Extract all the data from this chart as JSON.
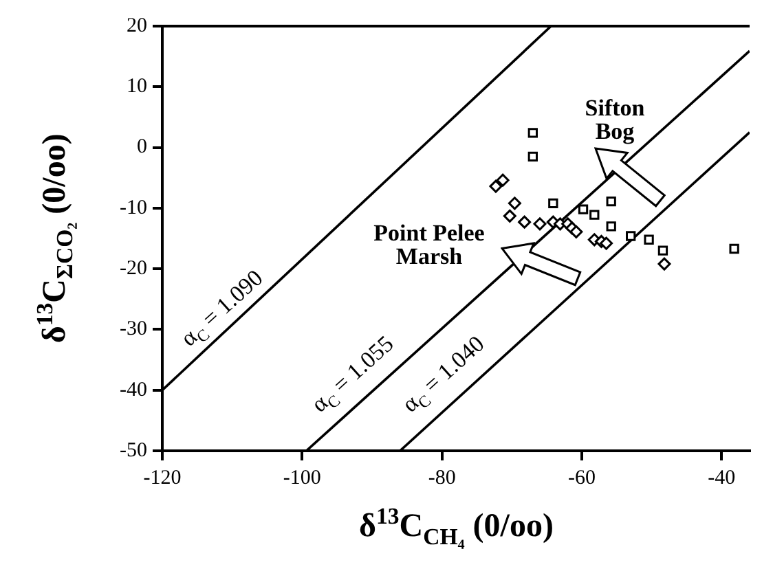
{
  "chart_data": {
    "type": "scatter",
    "xlabel": "δ$^{13}$C$_{CH₄}$ (0/oo)",
    "ylabel": "δ$^{13}$C$_{ΣCO₂}$ (0/oo)",
    "xlim": [
      -120,
      -36
    ],
    "ylim": [
      -50,
      20
    ],
    "xticks": [
      -120,
      -100,
      -80,
      -60,
      -40
    ],
    "yticks": [
      -50,
      -40,
      -30,
      -20,
      -10,
      0,
      10,
      20
    ],
    "grid": false,
    "legend": false,
    "series": [
      {
        "marker": "square",
        "color": "#000000",
        "x": [
          -67.0,
          -67.0,
          -64.1,
          -59.8,
          -58.2,
          -55.8,
          -55.8,
          -53.0,
          -50.4,
          -48.4,
          -38.2
        ],
        "values": [
          2.4,
          -1.5,
          -9.2,
          -10.2,
          -11.1,
          -8.9,
          -13.0,
          -14.6,
          -15.2,
          -17.0,
          -16.7
        ]
      },
      {
        "marker": "diamond",
        "color": "#000000",
        "x": [
          -72.3,
          -71.3,
          -69.6,
          -70.3,
          -68.2,
          -66.0,
          -64.1,
          -63.1,
          -62.0,
          -61.4,
          -60.8,
          -58.2,
          -57.2,
          -56.5,
          -48.2
        ],
        "values": [
          -6.4,
          -5.4,
          -9.2,
          -11.3,
          -12.3,
          -12.6,
          -12.3,
          -12.6,
          -12.6,
          -13.3,
          -13.9,
          -15.2,
          -15.5,
          -15.8,
          -19.2
        ]
      },
      {
        "type": "line",
        "marker": "none",
        "color": "#000000",
        "x": [
          -120,
          -64.4
        ],
        "values": [
          -40,
          20
        ]
      },
      {
        "type": "line",
        "marker": "none",
        "color": "#000000",
        "x": [
          -99.4,
          -36
        ],
        "values": [
          -50,
          15.9
        ]
      },
      {
        "type": "line",
        "marker": "none",
        "color": "#000000",
        "x": [
          -86,
          -36
        ],
        "values": [
          -50,
          2.5
        ]
      }
    ],
    "annotations": [
      "α$_{C}$ = 1.090",
      "α$_{C}$ = 1.055",
      "α$_{C}$ = 1.040",
      "Point Pelee Marsh",
      "Sifton Bog"
    ]
  }
}
